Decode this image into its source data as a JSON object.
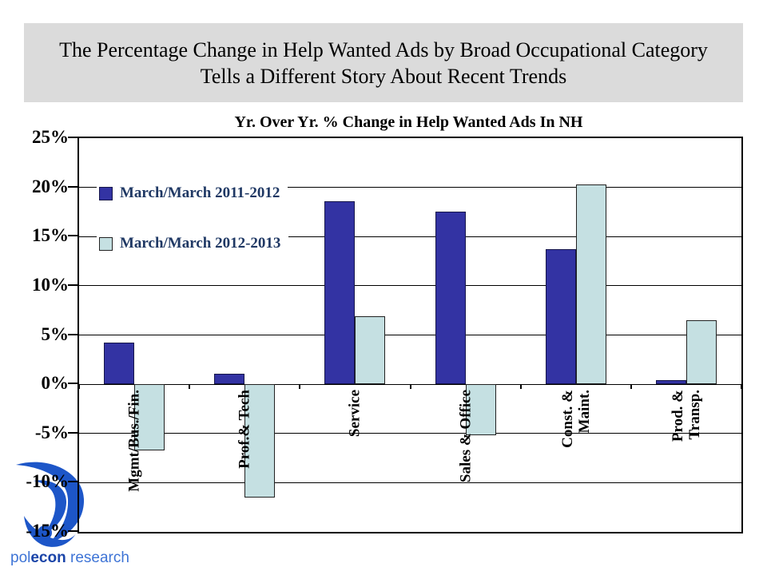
{
  "slide": {
    "title_line1": "The Percentage Change in Help Wanted Ads by Broad Occupational Category",
    "title_line2": "Tells a Different Story About Recent Trends"
  },
  "chart_data": {
    "type": "bar",
    "title": "Yr. Over Yr. % Change in Help Wanted Ads In NH",
    "categories": [
      [
        "Mgmt/Bus./Fin."
      ],
      [
        "Prof.& Tech"
      ],
      [
        "Service"
      ],
      [
        "Sales & Office"
      ],
      [
        "Const. &",
        "Maint."
      ],
      [
        "Prod. &",
        "Transp."
      ]
    ],
    "series": [
      {
        "name": "March/March 2011-2012",
        "color": "#3333A3",
        "border": "#16164A",
        "values": [
          4.2,
          1.1,
          18.6,
          17.5,
          13.7,
          0.4
        ]
      },
      {
        "name": "March/March 2012-2013",
        "color": "#C5E0E2",
        "border": "#222222",
        "values": [
          -6.7,
          -11.5,
          6.9,
          -5.2,
          20.3,
          6.5
        ]
      }
    ],
    "ylim": [
      -15,
      25
    ],
    "ytick_step": 5,
    "ytick_labels": [
      "25%",
      "20%",
      "15%",
      "10%",
      "5%",
      "0%",
      "-5%",
      "-10%",
      "-15%"
    ],
    "grid": true,
    "legend_position": "inside-top-left",
    "legend_text_color": "#1F3864"
  },
  "brand": {
    "part1": "pol",
    "part2": "econ",
    "part3": " research"
  },
  "colors": {
    "banner_bg": "#DBDBDB",
    "axis": "#000000",
    "logo_blue": "#1D56C8",
    "brand_light": "#3E74D6",
    "brand_dark": "#1A44A8"
  }
}
